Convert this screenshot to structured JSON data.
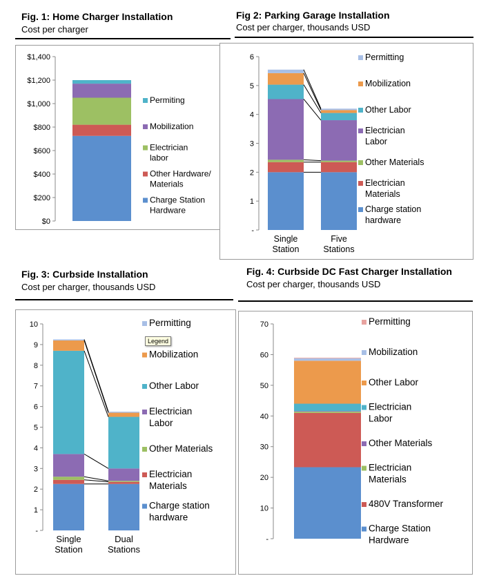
{
  "charts": [
    {
      "id": "fig1",
      "title": "Fig. 1: Home Charger Installation",
      "subtitle": "Cost per charger",
      "chart_data": {
        "type": "bar",
        "stacked": true,
        "categories": [
          ""
        ],
        "yticks": [
          "$0",
          "$200",
          "$400",
          "$600",
          "$800",
          "$1,000",
          "$1,200",
          "$1,400"
        ],
        "ylim": [
          0,
          1400
        ],
        "series": [
          {
            "name": "Charge Station Hardware",
            "values": [
              725
            ],
            "color": "#5b8fce"
          },
          {
            "name": "Other Hardware/ Materials",
            "values": [
              95
            ],
            "color": "#cd5a55"
          },
          {
            "name": "Electrician labor",
            "values": [
              230
            ],
            "color": "#9dc063"
          },
          {
            "name": "Mobilization",
            "values": [
              120
            ],
            "color": "#8c6bb3"
          },
          {
            "name": "Permiting",
            "values": [
              30
            ],
            "color": "#4fb3c9"
          }
        ]
      }
    },
    {
      "id": "fig2",
      "title": "Fig 2: Parking Garage Installation",
      "subtitle": "Cost per charger, thousands USD",
      "chart_data": {
        "type": "bar",
        "stacked": true,
        "categories": [
          "Single Station",
          "Five Stations"
        ],
        "yticks": [
          "-",
          "1",
          "2",
          "3",
          "4",
          "5",
          "6"
        ],
        "ylim": [
          0,
          6
        ],
        "series": [
          {
            "name": "Charge station hardware",
            "values": [
              2.0,
              2.0
            ],
            "color": "#5b8fce"
          },
          {
            "name": "Electrician Materials",
            "values": [
              0.35,
              0.35
            ],
            "color": "#cd5a55"
          },
          {
            "name": "Other Materials",
            "values": [
              0.08,
              0.05
            ],
            "color": "#9dc063"
          },
          {
            "name": "Electrician Labor",
            "values": [
              2.1,
              1.4
            ],
            "color": "#8c6bb3"
          },
          {
            "name": "Other Labor",
            "values": [
              0.5,
              0.25
            ],
            "color": "#4fb3c9"
          },
          {
            "name": "Mobilization",
            "values": [
              0.4,
              0.1
            ],
            "color": "#ec9a4c"
          },
          {
            "name": "Permitting",
            "values": [
              0.12,
              0.05
            ],
            "color": "#a8bfe6"
          }
        ]
      }
    },
    {
      "id": "fig3",
      "title": "Fig. 3: Curbside Installation",
      "subtitle": "Cost per charger, thousands USD",
      "tooltip": "Legend",
      "chart_data": {
        "type": "bar",
        "stacked": true,
        "categories": [
          "Single Station",
          "Dual Stations"
        ],
        "yticks": [
          "-",
          "1",
          "2",
          "3",
          "4",
          "5",
          "6",
          "7",
          "8",
          "9",
          "10"
        ],
        "ylim": [
          0,
          10
        ],
        "series": [
          {
            "name": "Charge station hardware",
            "values": [
              2.25,
              2.25
            ],
            "color": "#5b8fce"
          },
          {
            "name": "Electrician Materials",
            "values": [
              0.2,
              0.1
            ],
            "color": "#cd5a55"
          },
          {
            "name": "Other Materials",
            "values": [
              0.15,
              0.05
            ],
            "color": "#9dc063"
          },
          {
            "name": "Electrician Labor",
            "values": [
              1.1,
              0.6
            ],
            "color": "#8c6bb3"
          },
          {
            "name": "Other Labor",
            "values": [
              5.0,
              2.5
            ],
            "color": "#4fb3c9"
          },
          {
            "name": "Mobilization",
            "values": [
              0.5,
              0.2
            ],
            "color": "#ec9a4c"
          },
          {
            "name": "Permitting",
            "values": [
              0.05,
              0.05
            ],
            "color": "#a8bfe6"
          }
        ]
      }
    },
    {
      "id": "fig4",
      "title": "Fig. 4: Curbside DC Fast Charger Installation",
      "subtitle": "Cost per charger, thousands USD",
      "chart_data": {
        "type": "bar",
        "stacked": true,
        "categories": [
          ""
        ],
        "yticks": [
          "-",
          "10",
          "20",
          "30",
          "40",
          "50",
          "60",
          "70"
        ],
        "ylim": [
          0,
          70
        ],
        "series": [
          {
            "name": "Charge Station Hardware",
            "values": [
              23.3
            ],
            "color": "#5b8fce"
          },
          {
            "name": "480V Transformer",
            "values": [
              17.7
            ],
            "color": "#cd5a55"
          },
          {
            "name": "Electrician Materials",
            "values": [
              0.4
            ],
            "color": "#9dc063"
          },
          {
            "name": "Other Materials",
            "values": [
              0.2
            ],
            "color": "#8c6bb3"
          },
          {
            "name": "Electrician Labor",
            "values": [
              2.4
            ],
            "color": "#4fb3c9"
          },
          {
            "name": "Other Labor",
            "values": [
              14.0
            ],
            "color": "#ec9a4c"
          },
          {
            "name": "Mobilization",
            "values": [
              0.8
            ],
            "color": "#a8bfe6"
          },
          {
            "name": "Permitting",
            "values": [
              0.2
            ],
            "color": "#e8a3a0"
          }
        ]
      }
    }
  ]
}
